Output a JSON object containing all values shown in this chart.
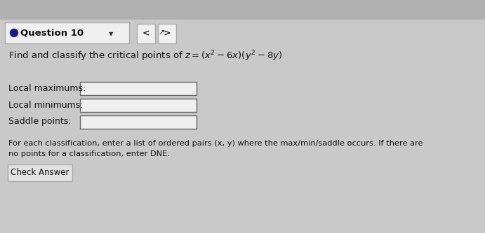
{
  "bg_color": "#c9c9c9",
  "header_box_color": "#f0f0f0",
  "header_box_edge": "#aaaaaa",
  "main_bg": "#d4d4d4",
  "title": "Question 10",
  "bullet_color": "#1a1a8c",
  "formula_text": "Find and classify the critical points of $z = (x^2 - 6x)(y^2 - 8y)$",
  "labels": [
    "Local maximums:",
    "Local minimums:",
    "Saddle points:"
  ],
  "footer_text1": "For each classification, enter a list of ordered pairs (x, y) where the max/min/saddle occurs. If there are",
  "footer_text2": "no points for a classification, enter DNE.",
  "button_text": "Check Answer",
  "font_color": "#111111",
  "box_fill": "#efefef",
  "box_edge": "#666666",
  "button_bg": "#e2e2e2",
  "button_edge": "#aaaaaa",
  "nav_box_color": "#f0f0f0",
  "nav_box_edge": "#aaaaaa"
}
